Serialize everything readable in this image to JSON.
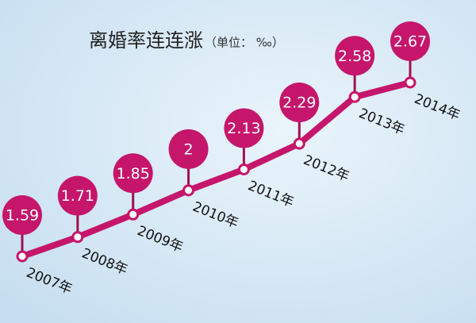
{
  "chart_data": {
    "type": "line",
    "title": "离婚率连连涨",
    "subtitle": "（单位：  ‰）",
    "categories": [
      "2007年",
      "2008年",
      "2009年",
      "2010年",
      "2011年",
      "2012年",
      "2013年",
      "2014年"
    ],
    "values": [
      1.59,
      1.71,
      1.85,
      2,
      2.13,
      2.29,
      2.58,
      2.67
    ],
    "color": "#c5166c"
  }
}
